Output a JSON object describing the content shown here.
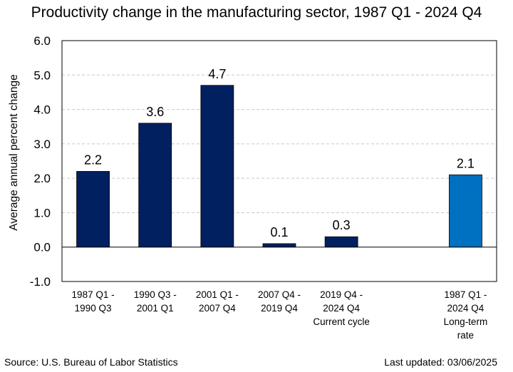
{
  "chart_data": {
    "type": "bar",
    "title": "Productivity change in the manufacturing sector, 1987 Q1 - 2024 Q4",
    "xlabel": "",
    "ylabel": "Average annual percent change",
    "ylim": [
      -1.0,
      6.0
    ],
    "yticks": [
      "6.0",
      "5.0",
      "4.0",
      "3.0",
      "2.0",
      "1.0",
      "0.0",
      "-1.0"
    ],
    "grid": true,
    "categories": [
      {
        "lines": [
          "1987 Q1 -",
          "1990 Q3"
        ],
        "value": 2.2,
        "label": "2.2",
        "color": "#002060"
      },
      {
        "lines": [
          "1990 Q3 -",
          "2001 Q1"
        ],
        "value": 3.6,
        "label": "3.6",
        "color": "#002060"
      },
      {
        "lines": [
          "2001 Q1 -",
          "2007 Q4"
        ],
        "value": 4.7,
        "label": "4.7",
        "color": "#002060"
      },
      {
        "lines": [
          "2007 Q4 -",
          "2019 Q4"
        ],
        "value": 0.1,
        "label": "0.1",
        "color": "#002060"
      },
      {
        "lines": [
          "2019 Q4 -",
          "2024 Q4",
          "Current cycle"
        ],
        "value": 0.3,
        "label": "0.3",
        "color": "#002060"
      },
      {
        "lines": [
          "1987 Q1 -",
          "2024 Q4",
          "Long-term",
          "rate"
        ],
        "value": 2.1,
        "label": "2.1",
        "color": "#0070C0",
        "slot": 6
      }
    ]
  },
  "footer": {
    "source": "Source: U.S. Bureau of Labor Statistics",
    "updated": "Last updated: 03/06/2025"
  }
}
